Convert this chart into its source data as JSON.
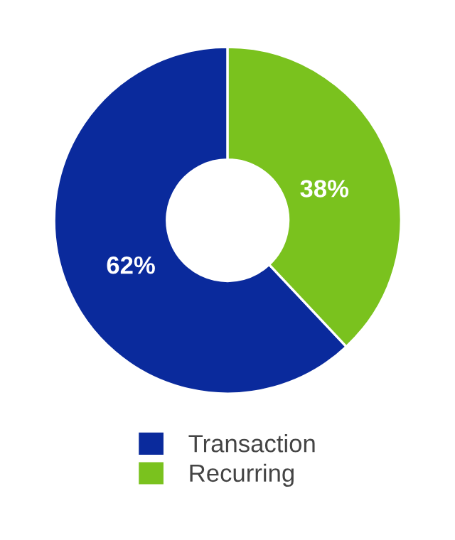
{
  "chart_data": {
    "type": "donut",
    "categories": [
      "Transaction",
      "Recurring"
    ],
    "values": [
      62,
      38
    ],
    "colors": [
      "#0a2a9c",
      "#7ac21e"
    ],
    "value_labels": [
      "62%",
      "38%"
    ],
    "legend": "bottom"
  }
}
